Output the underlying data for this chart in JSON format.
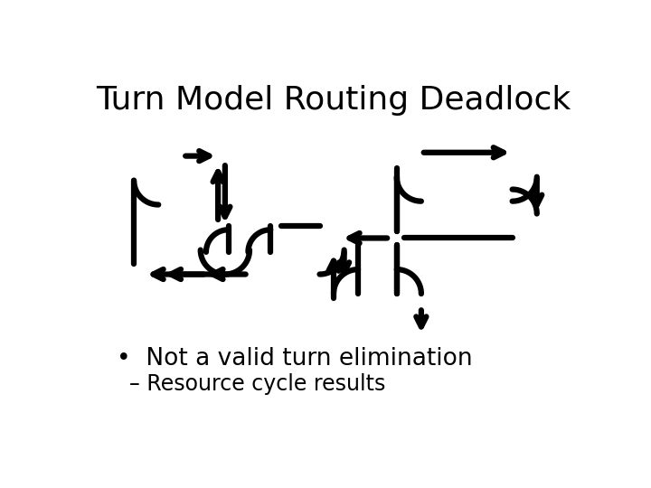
{
  "title": "Turn Model Routing Deadlock",
  "bullet1": "•  Not a valid turn elimination",
  "bullet2": "– Resource cycle results",
  "bg": "#ffffff",
  "fc": "#000000",
  "title_fs": 26,
  "b1_fs": 19,
  "b2_fs": 17,
  "lw": 4.5,
  "ms": 20
}
